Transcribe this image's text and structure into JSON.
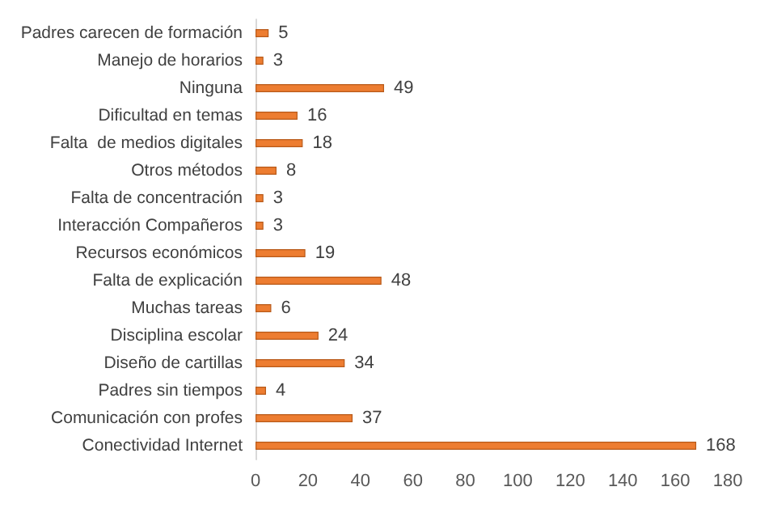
{
  "chart_data": {
    "type": "bar",
    "orientation": "horizontal",
    "categories": [
      "Padres carecen de formación",
      "Manejo de horarios",
      "Ninguna",
      "Dificultad en temas",
      "Falta  de medios digitales",
      "Otros métodos",
      "Falta de concentración",
      "Interacción Compañeros",
      "Recursos económicos",
      "Falta de explicación",
      "Muchas tareas",
      "Disciplina escolar",
      "Diseño de cartillas",
      "Padres sin tiempos",
      "Comunicación con profes",
      "Conectividad Internet"
    ],
    "values": [
      5,
      3,
      49,
      16,
      18,
      8,
      3,
      3,
      19,
      48,
      6,
      24,
      34,
      4,
      37,
      168
    ],
    "color": "#ed7d31",
    "xlim": [
      0,
      180
    ],
    "xticks": [
      0,
      20,
      40,
      60,
      80,
      100,
      120,
      140,
      160,
      180
    ],
    "data_labels": true
  }
}
